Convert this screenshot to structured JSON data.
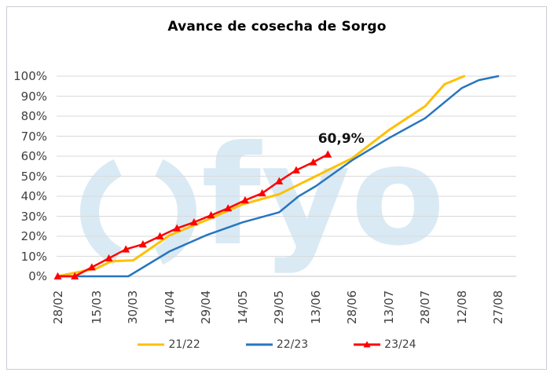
{
  "title": "Avance de cosecha de Sorgo",
  "watermark": {
    "text": "fyo"
  },
  "annotation": {
    "label": "60,9%"
  },
  "colors": {
    "series_yellow": "#FFC000",
    "series_blue": "#2776BE",
    "series_red": "#FF0000",
    "gridline": "#D9D9D9",
    "axis_text": "#404040",
    "frame_border": "#C9CED3",
    "watermark_blue": "#D9EAF5"
  },
  "chart_data": {
    "type": "line",
    "title": "Avance de cosecha de Sorgo",
    "xlabel": "",
    "ylabel": "",
    "y_axis": {
      "min": 0,
      "max": 100,
      "step": 10,
      "tick_format": "percent"
    },
    "y_tick_labels": [
      "100%",
      "90%",
      "80%",
      "70%",
      "60%",
      "50%",
      "40%",
      "30%",
      "20%",
      "10%",
      "0%"
    ],
    "x_tick_labels": [
      "28/02",
      "15/03",
      "30/03",
      "14/04",
      "29/04",
      "14/05",
      "29/05",
      "13/06",
      "28/06",
      "13/07",
      "28/07",
      "12/08",
      "27/08"
    ],
    "x_tick_days": [
      0,
      16,
      31,
      46,
      61,
      76,
      91,
      106,
      121,
      136,
      151,
      166,
      181
    ],
    "grid": "horizontal",
    "legend_position": "bottom",
    "series": [
      {
        "name": "21/22",
        "color": "#FFC000",
        "marker": "none",
        "x_days": [
          0,
          16,
          22,
          31,
          46,
          61,
          76,
          91,
          106,
          121,
          136,
          151,
          159,
          167
        ],
        "values": [
          0,
          4,
          7.5,
          8,
          20.5,
          28,
          36,
          41,
          50,
          59,
          73,
          85,
          96,
          100
        ]
      },
      {
        "name": "22/23",
        "color": "#2776BE",
        "marker": "none",
        "x_days": [
          0,
          16,
          29,
          46,
          61,
          76,
          91,
          99,
          106,
          121,
          136,
          151,
          166,
          173,
          181
        ],
        "values": [
          0,
          0,
          0,
          12.5,
          20.5,
          27,
          32,
          40,
          45,
          58,
          69,
          79,
          94,
          98,
          100
        ]
      },
      {
        "name": "23/24",
        "color": "#FF0000",
        "marker": "triangle",
        "x_days": [
          0,
          7,
          14,
          21,
          28,
          35,
          42,
          49,
          56,
          63,
          70,
          77,
          84,
          91,
          98,
          105,
          111
        ],
        "values": [
          0,
          0,
          4.5,
          9,
          13.5,
          16,
          20,
          24,
          27,
          30.5,
          34,
          38,
          41.5,
          47.5,
          53,
          57,
          60.9
        ]
      }
    ],
    "annotation": {
      "text": "60,9%",
      "series": "23/24",
      "at_last_point": true
    }
  }
}
